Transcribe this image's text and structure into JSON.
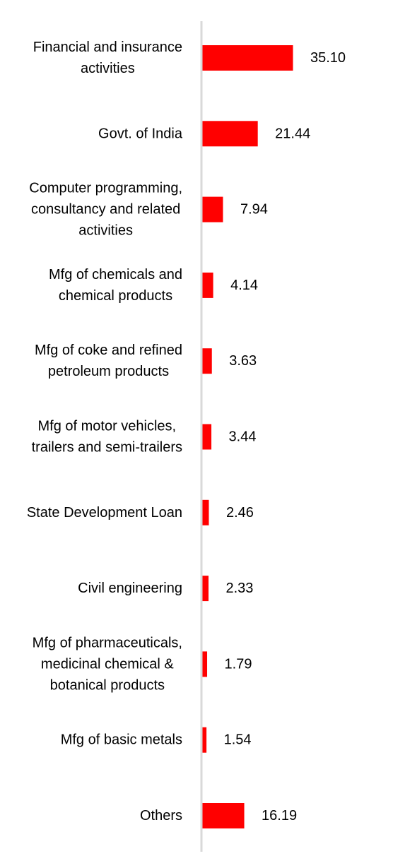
{
  "chart_data": {
    "type": "bar",
    "orientation": "horizontal",
    "categories": [
      [
        "Financial and insurance",
        "activities"
      ],
      [
        "Govt. of India"
      ],
      [
        "Computer programming,",
        "consultancy and related",
        "activities"
      ],
      [
        "Mfg of chemicals and",
        "chemical products"
      ],
      [
        "Mfg of coke and refined",
        "petroleum products"
      ],
      [
        "Mfg of motor vehicles,",
        "trailers and semi-trailers"
      ],
      [
        "State Development Loan"
      ],
      [
        "Civil engineering"
      ],
      [
        "Mfg of pharmaceuticals,",
        "medicinal chemical &",
        "botanical products"
      ],
      [
        "Mfg of basic metals"
      ],
      [
        "Others"
      ]
    ],
    "values": [
      35.1,
      21.44,
      7.94,
      4.14,
      3.63,
      3.44,
      2.46,
      2.33,
      1.79,
      1.54,
      16.19
    ],
    "value_labels": [
      "35.10",
      "21.44",
      "7.94",
      "4.14",
      "3.63",
      "3.44",
      "2.46",
      "2.33",
      "1.79",
      "1.54",
      "16.19"
    ],
    "title": "",
    "xlabel": "",
    "ylabel": "",
    "xlim": [
      0,
      35.1
    ],
    "grid": false,
    "legend": "none",
    "colors": {
      "bar": "#ff0000",
      "axis": "#d9d9d9",
      "text": "#000000"
    }
  }
}
